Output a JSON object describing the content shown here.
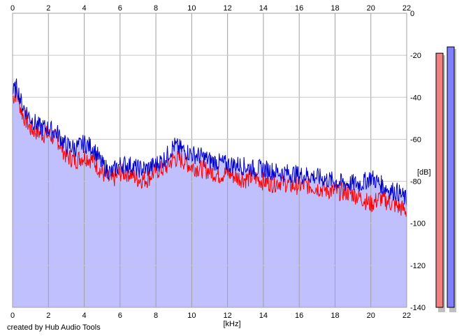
{
  "credit": "created by Hub Audio Tools",
  "chart_data": {
    "type": "area",
    "xlabel": "[kHz]",
    "ylabel": "[dB]",
    "xlim": [
      0,
      22
    ],
    "ylim": [
      -140,
      0
    ],
    "x_ticks": [
      0,
      2,
      4,
      6,
      8,
      10,
      12,
      14,
      16,
      18,
      20,
      22
    ],
    "y_ticks": [
      0,
      -20,
      -40,
      -60,
      -80,
      -100,
      -120,
      -140
    ],
    "grid": true,
    "colors": {
      "fill": "#c0c0ff",
      "channel_a": "#ff0000",
      "channel_b": "#0000cc",
      "meter_a": "#f08080",
      "meter_b": "#8080ff"
    },
    "series": [
      {
        "color": "#ff0000",
        "x": [
          0,
          0.25,
          0.5,
          1,
          1.5,
          2,
          2.5,
          3,
          3.5,
          4,
          4.5,
          5,
          5.5,
          6,
          6.5,
          7,
          7.5,
          8,
          8.5,
          9,
          9.5,
          10,
          10.5,
          11,
          11.5,
          12,
          12.5,
          13,
          13.5,
          14,
          14.5,
          15,
          15.5,
          16,
          16.5,
          17,
          17.5,
          18,
          18.5,
          19,
          19.5,
          20,
          20.5,
          21,
          21.5,
          22
        ],
        "values": [
          -40,
          -38,
          -47,
          -55,
          -57,
          -58,
          -60,
          -68,
          -70,
          -68,
          -70,
          -76,
          -80,
          -76,
          -76,
          -79,
          -79,
          -75,
          -74,
          -69,
          -70,
          -73,
          -74,
          -75,
          -77,
          -76,
          -78,
          -79,
          -78,
          -80,
          -81,
          -80,
          -82,
          -82,
          -82,
          -83,
          -84,
          -85,
          -85,
          -86,
          -88,
          -91,
          -88,
          -90,
          -92,
          -94
        ]
      },
      {
        "color": "#0000cc",
        "x": [
          0,
          0.25,
          0.5,
          1,
          1.5,
          2,
          2.5,
          3,
          3.5,
          4,
          4.5,
          5,
          5.5,
          6,
          6.5,
          7,
          7.5,
          8,
          8.5,
          9,
          9.5,
          10,
          10.5,
          11,
          11.5,
          12,
          12.5,
          13,
          13.5,
          14,
          14.5,
          15,
          15.5,
          16,
          16.5,
          17,
          17.5,
          18,
          18.5,
          19,
          19.5,
          20,
          20.5,
          21,
          21.5,
          22
        ],
        "values": [
          -38,
          -35,
          -43,
          -50,
          -54,
          -55,
          -57,
          -63,
          -64,
          -62,
          -64,
          -72,
          -76,
          -72,
          -72,
          -74,
          -74,
          -72,
          -69,
          -63,
          -65,
          -67,
          -68,
          -70,
          -71,
          -72,
          -72,
          -73,
          -74,
          -74,
          -75,
          -76,
          -76,
          -77,
          -77,
          -78,
          -79,
          -80,
          -81,
          -81,
          -81,
          -78,
          -81,
          -84,
          -85,
          -89
        ]
      }
    ],
    "meters_db": [
      -19,
      -16
    ]
  }
}
